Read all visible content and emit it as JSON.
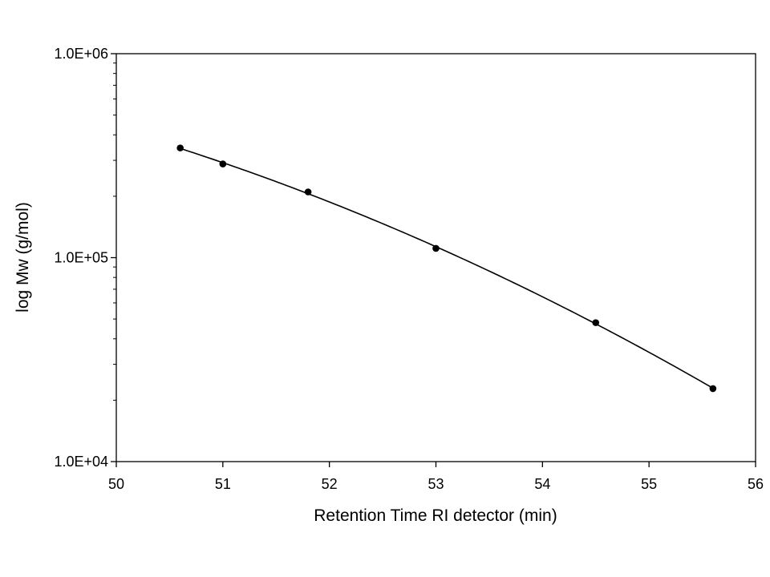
{
  "chart_data": {
    "type": "scatter",
    "title": "",
    "xlabel": "Retention Time RI detector (min)",
    "ylabel": "log Mw (g/mol)",
    "x_scale": "linear",
    "y_scale": "log",
    "xlim": [
      50,
      56
    ],
    "ylim": [
      10000,
      1000000
    ],
    "x_ticks": [
      "50",
      "51",
      "52",
      "53",
      "54",
      "55",
      "56"
    ],
    "y_ticks": [
      "1.0E+04",
      "1.0E+05",
      "1.0E+06"
    ],
    "grid": false,
    "legend": "none",
    "colors": {
      "marker": "#000000",
      "line": "#000000",
      "axis": "#000000"
    },
    "series": [
      {
        "marker": "circle",
        "x": [
          50.6,
          51.0,
          51.8,
          53.0,
          54.5,
          55.6
        ],
        "y": [
          345000,
          288000,
          210000,
          111000,
          48000,
          22800
        ]
      }
    ],
    "trendline": {
      "type": "polynomial-fit",
      "x_range": [
        50.6,
        55.6
      ]
    }
  }
}
